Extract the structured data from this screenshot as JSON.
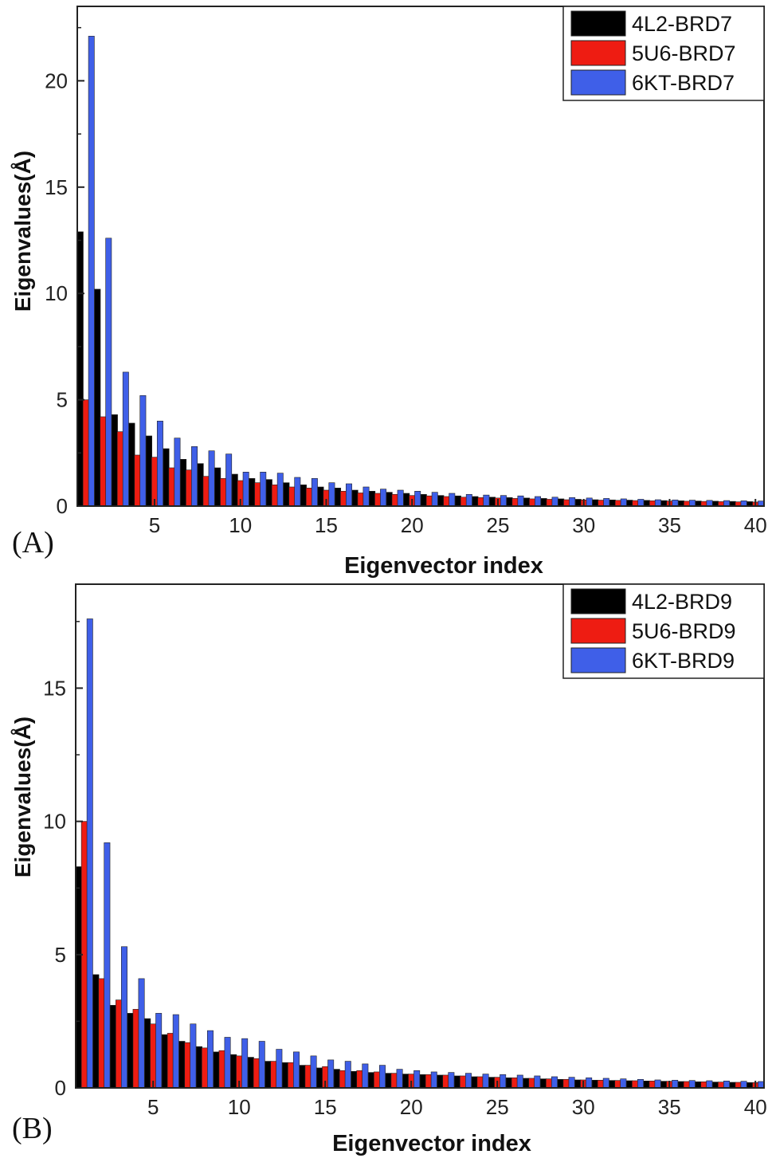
{
  "chart_data": [
    {
      "type": "bar",
      "panel_label": "(A)",
      "xlabel": "Eigenvector index",
      "ylabel": "Eigenvalues(Å)",
      "xlim": [
        0.5,
        40.5
      ],
      "ylim": [
        0,
        23.5
      ],
      "xticks": [
        5,
        10,
        15,
        20,
        25,
        30,
        35,
        40
      ],
      "yticks": [
        0,
        5,
        10,
        15,
        20
      ],
      "legend_position": "top-right",
      "categories": [
        1,
        2,
        3,
        4,
        5,
        6,
        7,
        8,
        9,
        10,
        11,
        12,
        13,
        14,
        15,
        16,
        17,
        18,
        19,
        20,
        21,
        22,
        23,
        24,
        25,
        26,
        27,
        28,
        29,
        30,
        31,
        32,
        33,
        34,
        35,
        36,
        37,
        38,
        39,
        40
      ],
      "series": [
        {
          "name": "4L2-BRD7",
          "color": "#000000",
          "values": [
            12.9,
            10.2,
            4.3,
            3.9,
            3.3,
            2.7,
            2.2,
            2.0,
            1.8,
            1.5,
            1.3,
            1.25,
            1.1,
            1.0,
            0.9,
            0.85,
            0.75,
            0.7,
            0.65,
            0.6,
            0.55,
            0.5,
            0.48,
            0.45,
            0.42,
            0.4,
            0.38,
            0.36,
            0.34,
            0.32,
            0.3,
            0.29,
            0.28,
            0.27,
            0.26,
            0.25,
            0.24,
            0.23,
            0.22,
            0.21
          ]
        },
        {
          "name": "5U6-BRD7",
          "color": "#ee1c12",
          "values": [
            5.0,
            4.2,
            3.5,
            2.4,
            2.3,
            1.8,
            1.7,
            1.4,
            1.3,
            1.2,
            1.1,
            1.0,
            0.9,
            0.85,
            0.75,
            0.7,
            0.62,
            0.6,
            0.55,
            0.5,
            0.48,
            0.45,
            0.42,
            0.4,
            0.38,
            0.36,
            0.34,
            0.32,
            0.3,
            0.29,
            0.28,
            0.27,
            0.26,
            0.25,
            0.24,
            0.23,
            0.22,
            0.21,
            0.2,
            0.19
          ]
        },
        {
          "name": "6KT-BRD7",
          "color": "#3f5fe8",
          "values": [
            22.1,
            12.6,
            6.3,
            5.2,
            4.0,
            3.2,
            2.8,
            2.6,
            2.45,
            1.6,
            1.6,
            1.55,
            1.35,
            1.3,
            1.1,
            1.05,
            0.9,
            0.8,
            0.75,
            0.7,
            0.65,
            0.6,
            0.55,
            0.52,
            0.5,
            0.48,
            0.45,
            0.42,
            0.4,
            0.38,
            0.36,
            0.34,
            0.32,
            0.3,
            0.29,
            0.28,
            0.27,
            0.26,
            0.25,
            0.24
          ]
        }
      ]
    },
    {
      "type": "bar",
      "panel_label": "(B)",
      "xlabel": "Eigenvector index",
      "ylabel": "Eigenvalues(Å)",
      "xlim": [
        0.5,
        40.5
      ],
      "ylim": [
        0,
        18.9
      ],
      "xticks": [
        5,
        10,
        15,
        20,
        25,
        30,
        35,
        40
      ],
      "yticks": [
        0,
        5,
        10,
        15
      ],
      "legend_position": "top-right",
      "categories": [
        1,
        2,
        3,
        4,
        5,
        6,
        7,
        8,
        9,
        10,
        11,
        12,
        13,
        14,
        15,
        16,
        17,
        18,
        19,
        20,
        21,
        22,
        23,
        24,
        25,
        26,
        27,
        28,
        29,
        30,
        31,
        32,
        33,
        34,
        35,
        36,
        37,
        38,
        39,
        40
      ],
      "series": [
        {
          "name": "4L2-BRD9",
          "color": "#000000",
          "values": [
            8.3,
            4.25,
            3.1,
            2.8,
            2.6,
            2.0,
            1.75,
            1.55,
            1.35,
            1.25,
            1.15,
            1.0,
            0.95,
            0.85,
            0.75,
            0.7,
            0.62,
            0.58,
            0.55,
            0.52,
            0.5,
            0.48,
            0.45,
            0.42,
            0.4,
            0.38,
            0.36,
            0.34,
            0.32,
            0.3,
            0.29,
            0.28,
            0.27,
            0.26,
            0.25,
            0.24,
            0.23,
            0.22,
            0.21,
            0.2
          ]
        },
        {
          "name": "5U6-BRD9",
          "color": "#ee1c12",
          "values": [
            10.0,
            4.1,
            3.3,
            2.95,
            2.4,
            2.05,
            1.7,
            1.5,
            1.4,
            1.2,
            1.1,
            1.0,
            0.95,
            0.85,
            0.8,
            0.65,
            0.65,
            0.6,
            0.55,
            0.52,
            0.5,
            0.48,
            0.45,
            0.42,
            0.4,
            0.38,
            0.36,
            0.34,
            0.32,
            0.3,
            0.29,
            0.28,
            0.27,
            0.26,
            0.25,
            0.24,
            0.23,
            0.22,
            0.21,
            0.2
          ]
        },
        {
          "name": "6KT-BRD9",
          "color": "#3f5fe8",
          "values": [
            17.6,
            9.2,
            5.3,
            4.1,
            2.8,
            2.75,
            2.4,
            2.15,
            1.9,
            1.85,
            1.75,
            1.45,
            1.35,
            1.2,
            1.05,
            1.0,
            0.9,
            0.85,
            0.7,
            0.65,
            0.6,
            0.58,
            0.55,
            0.52,
            0.5,
            0.48,
            0.45,
            0.42,
            0.4,
            0.38,
            0.36,
            0.34,
            0.32,
            0.3,
            0.29,
            0.28,
            0.27,
            0.26,
            0.25,
            0.24
          ]
        }
      ]
    }
  ]
}
